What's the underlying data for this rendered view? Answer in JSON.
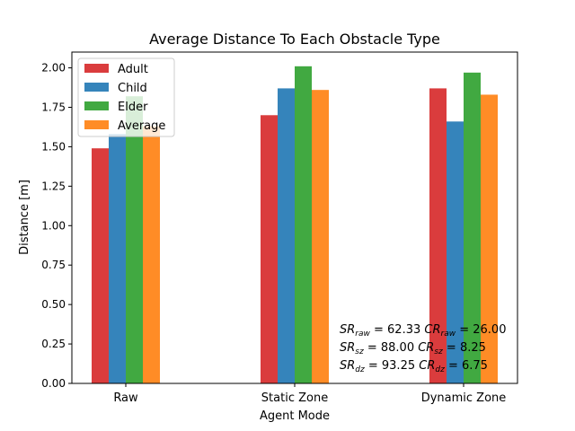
{
  "chart_data": {
    "type": "bar",
    "title": "Average Distance To Each Obstacle Type",
    "xlabel": "Agent Mode",
    "ylabel": "Distance [m]",
    "categories": [
      "Raw",
      "Static Zone",
      "Dynamic Zone"
    ],
    "ylim": [
      0,
      2.1
    ],
    "yticks": [
      "0.00",
      "0.25",
      "0.50",
      "0.75",
      "1.00",
      "1.25",
      "1.50",
      "1.75",
      "2.00"
    ],
    "grid": false,
    "legend_position": "top-left",
    "series": [
      {
        "name": "Adult",
        "color": "#d62728",
        "values": [
          1.49,
          1.7,
          1.87
        ]
      },
      {
        "name": "Child",
        "color": "#1f77b4",
        "values": [
          1.58,
          1.87,
          1.66
        ]
      },
      {
        "name": "Elder",
        "color": "#2ca02c",
        "values": [
          1.82,
          2.01,
          1.97
        ]
      },
      {
        "name": "Average",
        "color": "#ff7f0e",
        "values": [
          1.63,
          1.86,
          1.83
        ]
      }
    ],
    "annotations": [
      {
        "sr_label": "SR",
        "sr_sub": "raw",
        "sr_value": "62.33",
        "cr_label": "CR",
        "cr_sub": "raw",
        "cr_value": "26.00"
      },
      {
        "sr_label": "SR",
        "sr_sub": "sz",
        "sr_value": "88.00",
        "cr_label": "CR",
        "cr_sub": "sz",
        "cr_value": "8.25"
      },
      {
        "sr_label": "SR",
        "sr_sub": "dz",
        "sr_value": "93.25",
        "cr_label": "CR",
        "cr_sub": "dz",
        "cr_value": "6.75"
      }
    ]
  }
}
